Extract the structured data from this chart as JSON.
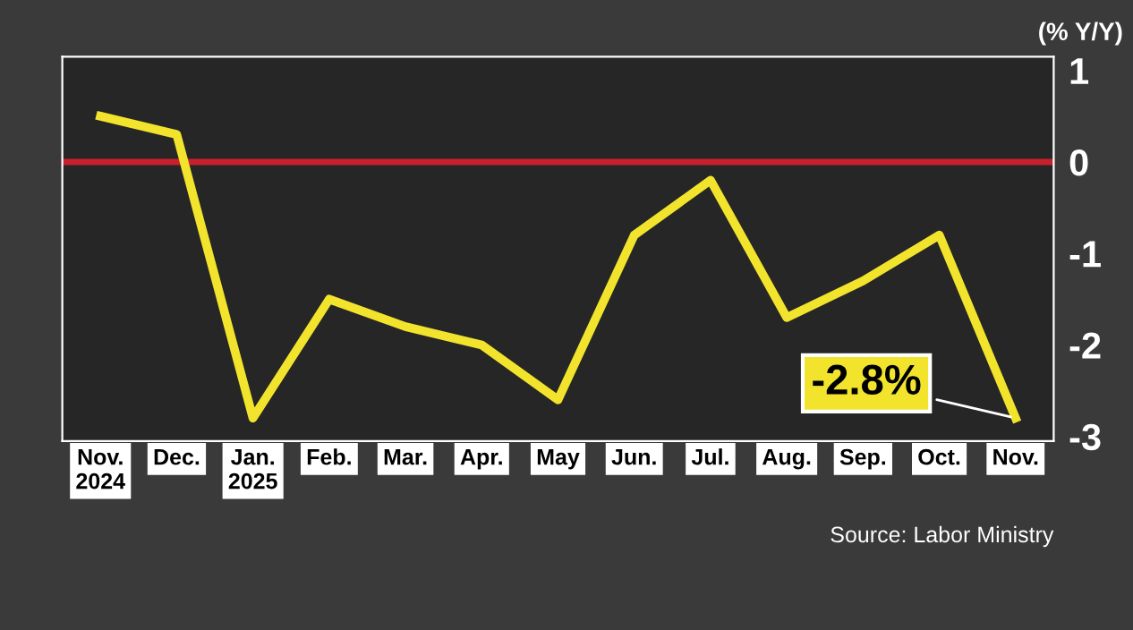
{
  "chart_data": {
    "type": "line",
    "ylabel": "(% Y/Y)",
    "categories": [
      "Nov.\n2024",
      "Dec.",
      "Jan.\n2025",
      "Feb.",
      "Mar.",
      "Apr.",
      "May",
      "Jun.",
      "Jul.",
      "Aug.",
      "Sep.",
      "Oct.",
      "Nov."
    ],
    "series": [
      {
        "color": "#f2e42c",
        "values": [
          0.5,
          0.3,
          -2.8,
          -1.5,
          -1.8,
          -2.0,
          -2.6,
          -0.8,
          -0.2,
          -1.7,
          -1.3,
          -0.8,
          -2.8
        ],
        "value_labels": [
          null,
          null,
          null,
          null,
          null,
          null,
          null,
          null,
          null,
          null,
          null,
          null,
          "-2.8%"
        ]
      }
    ],
    "ylim": [
      -3.05,
      1.15
    ],
    "yticks": [
      1,
      0,
      -1,
      -2,
      -3
    ],
    "ref_lines": [
      {
        "axis": "y",
        "value": 0,
        "color": "#c8202c"
      }
    ],
    "annotations": [
      "Source: Labor Ministry"
    ],
    "grid": false,
    "legend": false,
    "marker": "none",
    "line_style": "solid"
  }
}
